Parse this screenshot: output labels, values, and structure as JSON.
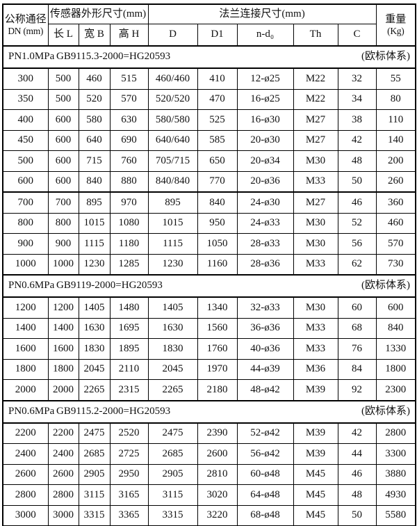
{
  "page": {
    "background": "#ffffff",
    "border_color": "#000000",
    "text_color": "#111111"
  },
  "table": {
    "header": {
      "dn_line1": "公称通径",
      "dn_line2": "DN (mm)",
      "group_sensor": "传感器外形尺寸(mm)",
      "group_flange": "法兰连接尺寸(mm)",
      "weight_line1": "重量",
      "weight_line2": "(Kg)",
      "sub_headers": [
        "长 L",
        "宽 B",
        "高 H",
        "D",
        "D1",
        "n-d₀",
        "Th",
        "C"
      ]
    },
    "sections": [
      {
        "pressure": "PN1.0MPa",
        "standard": "GB9115.3-2000=HG20593",
        "note": "(欧标体系)",
        "divider_above_row": 6,
        "rows": [
          [
            "300",
            "500",
            "460",
            "515",
            "460/460",
            "410",
            "12-ø25",
            "M22",
            "32",
            "55"
          ],
          [
            "350",
            "500",
            "520",
            "570",
            "520/520",
            "470",
            "16-ø25",
            "M22",
            "34",
            "80"
          ],
          [
            "400",
            "600",
            "580",
            "630",
            "580/580",
            "525",
            "16-ø30",
            "M27",
            "38",
            "110"
          ],
          [
            "450",
            "600",
            "640",
            "690",
            "640/640",
            "585",
            "20-ø30",
            "M27",
            "42",
            "140"
          ],
          [
            "500",
            "600",
            "715",
            "760",
            "705/715",
            "650",
            "20-ø34",
            "M30",
            "48",
            "200"
          ],
          [
            "600",
            "600",
            "840",
            "880",
            "840/840",
            "770",
            "20-ø36",
            "M33",
            "50",
            "260"
          ],
          [
            "700",
            "700",
            "895",
            "970",
            "895",
            "840",
            "24-ø30",
            "M27",
            "46",
            "360"
          ],
          [
            "800",
            "800",
            "1015",
            "1080",
            "1015",
            "950",
            "24-ø33",
            "M30",
            "52",
            "460"
          ],
          [
            "900",
            "900",
            "1115",
            "1180",
            "1115",
            "1050",
            "28-ø33",
            "M30",
            "56",
            "570"
          ],
          [
            "1000",
            "1000",
            "1230",
            "1285",
            "1230",
            "1160",
            "28-ø36",
            "M33",
            "62",
            "730"
          ]
        ]
      },
      {
        "pressure": "PN0.6MPa",
        "standard": "GB9119-2000=HG20593",
        "note": "(欧标体系)",
        "rows": [
          [
            "1200",
            "1200",
            "1405",
            "1480",
            "1405",
            "1340",
            "32-ø33",
            "M30",
            "60",
            "600"
          ],
          [
            "1400",
            "1400",
            "1630",
            "1695",
            "1630",
            "1560",
            "36-ø36",
            "M33",
            "68",
            "840"
          ],
          [
            "1600",
            "1600",
            "1830",
            "1895",
            "1830",
            "1760",
            "40-ø36",
            "M33",
            "76",
            "1330"
          ],
          [
            "1800",
            "1800",
            "2045",
            "2110",
            "2045",
            "1970",
            "44-ø39",
            "M36",
            "84",
            "1800"
          ],
          [
            "2000",
            "2000",
            "2265",
            "2315",
            "2265",
            "2180",
            "48-ø42",
            "M39",
            "92",
            "2300"
          ]
        ]
      },
      {
        "pressure": "PN0.6MPa",
        "standard": "GB9115.2-2000=HG20593",
        "note": "(欧标体系)",
        "rows": [
          [
            "2200",
            "2200",
            "2475",
            "2520",
            "2475",
            "2390",
            "52-ø42",
            "M39",
            "42",
            "2800"
          ],
          [
            "2400",
            "2400",
            "2685",
            "2725",
            "2685",
            "2600",
            "56-ø42",
            "M39",
            "44",
            "3300"
          ],
          [
            "2600",
            "2600",
            "2905",
            "2950",
            "2905",
            "2810",
            "60-ø48",
            "M45",
            "46",
            "3880"
          ],
          [
            "2800",
            "2800",
            "3115",
            "3165",
            "3115",
            "3020",
            "64-ø48",
            "M45",
            "48",
            "4930"
          ],
          [
            "3000",
            "3000",
            "3315",
            "3365",
            "3315",
            "3220",
            "68-ø48",
            "M45",
            "50",
            "5580"
          ]
        ]
      }
    ]
  }
}
